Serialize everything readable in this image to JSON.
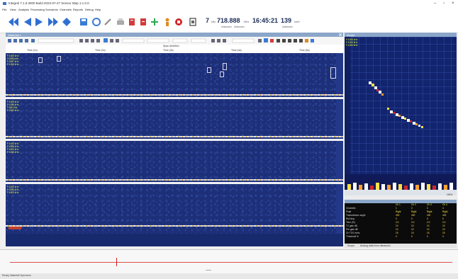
{
  "window": {
    "title": "Integral 7.1.0.3000 Build 2023-07-27 Sensor Map 1.1.0.0"
  },
  "menu": [
    "File",
    "View",
    "Analysis",
    "Processing",
    "Scenarios",
    "Channels",
    "Reports",
    "Debug",
    "Help"
  ],
  "toolbar": {
    "readout": {
      "primary": "7",
      "primary_unit": "kHz",
      "frequency": "718.888",
      "frequency_unit": "MHz",
      "sub_left": "Unknown",
      "sub_left2": "Unknown",
      "time": "16:45:21",
      "rate": "139",
      "rate_unit": "km/h",
      "sub_right": "Unknown"
    },
    "icons": [
      {
        "name": "rewind-icon",
        "color": "#2f6fd0"
      },
      {
        "name": "step-back-icon",
        "color": "#2f6fd0"
      },
      {
        "name": "play-icon",
        "color": "#2f6fd0"
      },
      {
        "name": "fast-forward-icon",
        "color": "#2f6fd0"
      },
      {
        "name": "record-icon",
        "color": "#2f6fd0"
      },
      {
        "name": "save-icon",
        "color": "#3a7bd5"
      },
      {
        "name": "settings-icon",
        "color": "#3a7bd5"
      },
      {
        "name": "edit-icon",
        "color": "#888888"
      },
      {
        "name": "print-icon",
        "color": "#aaaaaa"
      },
      {
        "name": "report-icon",
        "color": "#d23c3c"
      },
      {
        "name": "document-icon",
        "color": "#d23c3c"
      },
      {
        "name": "add-icon",
        "color": "#2aa84a"
      },
      {
        "name": "person-icon",
        "color": "#e08a20"
      },
      {
        "name": "stop-icon",
        "color": "#d02828"
      },
      {
        "name": "export-icon",
        "color": "#666666"
      }
    ]
  },
  "panel": {
    "title": "Waterfall 1",
    "sub_label": "Span Ambition"
  },
  "scale_ticks": [
    "Time (1s)",
    "Time (2s)",
    "Time (3s)",
    "Time (4s)",
    "Time (5s)"
  ],
  "channels": [
    {
      "labels": [
        "F:1000 kHz",
        "T:1500 kHz",
        "F:2087 kHz",
        "F:1200 kHz"
      ]
    },
    {
      "labels": [
        "F:1000 kHz",
        "F:1040 kHz",
        "F:500 kHz",
        "F:2087 kHz"
      ]
    },
    {
      "labels": [
        "F:1000 kHz",
        "F:2000 kHz",
        "F:1500 kHz",
        "F:1050 kHz"
      ]
    },
    {
      "labels": [
        "F:1000 kHz",
        "F:2000 kHz",
        "F:1500 kHz"
      ]
    }
  ],
  "spectrum": {
    "title": "Scope",
    "labels": [
      "F:1000 kHz",
      "F:1000 kHz",
      "F:1000 kHz"
    ],
    "percent": "100%"
  },
  "params": {
    "columns": [
      "Ch 1",
      "Ch 2",
      "Ch 3",
      "Ch 4"
    ],
    "rows": [
      {
        "label": "Channels",
        "values": [
          "1",
          "2",
          "3",
          "4"
        ]
      },
      {
        "label": "Peak",
        "values": [
          "Right",
          "Right",
          "Right",
          "Right"
        ]
      },
      {
        "label": "Transmission angle",
        "values": [
          "400",
          "400",
          "400",
          "400"
        ]
      },
      {
        "label": "Roll deg",
        "values": [
          "0",
          "0",
          "0",
          "0"
        ]
      },
      {
        "label": "Time (%)",
        "values": [
          "2.0",
          "2.0",
          "2.0",
          "2.0"
        ]
      },
      {
        "label": "TX gain dB",
        "values": [
          "10",
          "10",
          "10",
          "10"
        ]
      },
      {
        "label": "Pre gain dB",
        "values": [
          "10",
          "10",
          "10",
          "10"
        ]
      },
      {
        "label": "Ch TOG mins",
        "values": [
          "15",
          "15",
          "15",
          "15"
        ]
      },
      {
        "label": "Threshold %",
        "values": [
          "0",
          "0",
          "0",
          "0"
        ]
      }
    ]
  },
  "right_tabs": [
    "Scope",
    "Analog data from ultrasonic"
  ],
  "status": "Ready  Waterfall  Spectrum"
}
